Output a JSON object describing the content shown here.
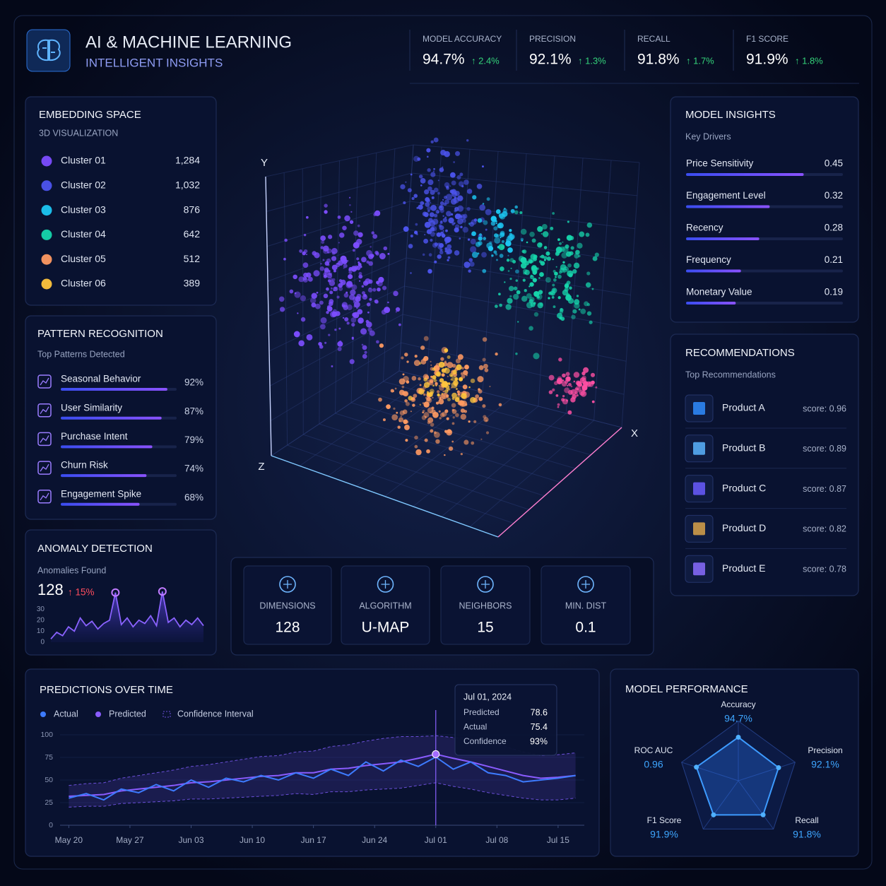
{
  "header": {
    "title": "AI & MACHINE LEARNING",
    "subtitle": "INTELLIGENT INSIGHTS"
  },
  "kpis": [
    {
      "label": "MODEL ACCURACY",
      "value": "94.7%",
      "delta": "↑ 2.4%"
    },
    {
      "label": "PRECISION",
      "value": "92.1%",
      "delta": "↑ 1.3%"
    },
    {
      "label": "RECALL",
      "value": "91.8%",
      "delta": "↑ 1.7%"
    },
    {
      "label": "F1 SCORE",
      "value": "91.9%",
      "delta": "↑ 1.8%"
    }
  ],
  "embedding": {
    "title": "EMBEDDING SPACE",
    "subtitle": "3D VISUALIZATION",
    "axes": {
      "x": "X",
      "y": "Y",
      "z": "Z"
    },
    "clusters": [
      {
        "name": "Cluster 01",
        "count": "1,284",
        "color": "#7c4dff"
      },
      {
        "name": "Cluster 02",
        "count": "1,032",
        "color": "#4d55f0"
      },
      {
        "name": "Cluster 03",
        "count": "876",
        "color": "#1cc6f2"
      },
      {
        "name": "Cluster 04",
        "count": "642",
        "color": "#16d6ac"
      },
      {
        "name": "Cluster 05",
        "count": "512",
        "color": "#ff9a62"
      },
      {
        "name": "Cluster 06",
        "count": "389",
        "color": "#ffc53d"
      }
    ]
  },
  "patterns": {
    "title": "PATTERN RECOGNITION",
    "subtitle": "Top Patterns Detected",
    "xlim": [
      0,
      100
    ],
    "items": [
      {
        "name": "Seasonal Behavior",
        "value": 92,
        "label": "92%"
      },
      {
        "name": "User Similarity",
        "value": 87,
        "label": "87%"
      },
      {
        "name": "Purchase Intent",
        "value": 79,
        "label": "79%"
      },
      {
        "name": "Churn Risk",
        "value": 74,
        "label": "74%"
      },
      {
        "name": "Engagement Spike",
        "value": 68,
        "label": "68%"
      }
    ]
  },
  "anomaly": {
    "title": "ANOMALY DETECTION",
    "subtitle": "Anomalies Found",
    "value": "128",
    "delta": "↑ 15%",
    "ylim": [
      0,
      48
    ],
    "yticks": [
      0,
      10,
      20,
      30
    ],
    "values": [
      3,
      9,
      6,
      14,
      10,
      22,
      15,
      19,
      12,
      17,
      20,
      45,
      16,
      22,
      14,
      20,
      17,
      24,
      15,
      46,
      18,
      22,
      14,
      20,
      16,
      22,
      15
    ]
  },
  "parameters": [
    {
      "label": "DIMENSIONS",
      "value": "128"
    },
    {
      "label": "ALGORITHM",
      "value": "U-MAP"
    },
    {
      "label": "NEIGHBORS",
      "value": "15"
    },
    {
      "label": "MIN. DIST",
      "value": "0.1"
    }
  ],
  "insights": {
    "title": "MODEL INSIGHTS",
    "subtitle": "Key Drivers",
    "xlim": [
      0,
      0.6
    ],
    "drivers": [
      {
        "name": "Price Sensitivity",
        "value": 0.45
      },
      {
        "name": "Engagement Level",
        "value": 0.32
      },
      {
        "name": "Recency",
        "value": 0.28
      },
      {
        "name": "Frequency",
        "value": 0.21
      },
      {
        "name": "Monetary Value",
        "value": 0.19
      }
    ]
  },
  "recommendations": {
    "title": "RECOMMENDATIONS",
    "subtitle": "Top Recommendations",
    "items": [
      {
        "name": "Product A",
        "score": "score: 0.96"
      },
      {
        "name": "Product B",
        "score": "score: 0.89"
      },
      {
        "name": "Product C",
        "score": "score: 0.87"
      },
      {
        "name": "Product D",
        "score": "score: 0.82"
      },
      {
        "name": "Product E",
        "score": "score: 0.78"
      }
    ]
  },
  "predictions": {
    "title": "PREDICTIONS OVER TIME",
    "xlim": [
      -1,
      59
    ],
    "ylim": [
      0,
      100
    ],
    "yticks": [
      0,
      25,
      50,
      75,
      100
    ],
    "xticks": [
      {
        "value": 0,
        "label": "May 20"
      },
      {
        "value": 7,
        "label": "May 27"
      },
      {
        "value": 14,
        "label": "Jun 03"
      },
      {
        "value": 21,
        "label": "Jun 10"
      },
      {
        "value": 28,
        "label": "Jun 17"
      },
      {
        "value": 35,
        "label": "Jun 24"
      },
      {
        "value": 42,
        "label": "Jul 01"
      },
      {
        "value": 49,
        "label": "Jul 08"
      },
      {
        "value": 56,
        "label": "Jul 15"
      }
    ],
    "x": [
      0,
      2,
      4,
      6,
      8,
      10,
      12,
      14,
      16,
      18,
      20,
      22,
      24,
      26,
      28,
      30,
      32,
      34,
      36,
      38,
      40,
      42,
      44,
      46,
      48,
      50,
      52,
      54,
      56,
      58
    ],
    "series": [
      {
        "name": "Actual",
        "color": "#3d7bff",
        "values": [
          30,
          35,
          28,
          40,
          36,
          45,
          38,
          50,
          42,
          52,
          48,
          55,
          50,
          58,
          52,
          62,
          55,
          70,
          60,
          72,
          65,
          75.4,
          62,
          70,
          58,
          55,
          48,
          50,
          52,
          55
        ]
      },
      {
        "name": "Predicted",
        "color": "#8a5cff",
        "values": [
          32,
          33,
          34,
          38,
          40,
          42,
          44,
          47,
          48,
          50,
          52,
          54,
          55,
          58,
          58,
          62,
          63,
          66,
          68,
          70,
          74,
          78.6,
          74,
          70,
          65,
          60,
          55,
          52,
          53,
          55
        ]
      },
      {
        "name": "Confidence Interval",
        "color": "#6a4fd8",
        "lower": [
          20,
          21,
          21,
          24,
          25,
          26,
          27,
          29,
          29,
          30,
          31,
          32,
          33,
          35,
          34,
          37,
          37,
          39,
          40,
          41,
          44,
          47,
          43,
          40,
          36,
          33,
          30,
          28,
          28,
          30
        ],
        "upper": [
          44,
          46,
          47,
          52,
          55,
          58,
          61,
          65,
          67,
          70,
          73,
          76,
          77,
          81,
          82,
          87,
          89,
          93,
          96,
          98,
          98,
          99,
          97,
          96,
          92,
          87,
          81,
          77,
          78,
          80
        ]
      }
    ],
    "tooltip": {
      "date": "Jul 01, 2024",
      "x": 42,
      "rows": [
        {
          "name": "Predicted",
          "value": "78.6"
        },
        {
          "name": "Actual",
          "value": "75.4"
        },
        {
          "name": "Confidence",
          "value": "93%"
        }
      ]
    }
  },
  "performance": {
    "title": "MODEL PERFORMANCE",
    "axes": [
      {
        "name": "Accuracy",
        "value": 94.7,
        "label": "94.7%",
        "max": 100
      },
      {
        "name": "Precision",
        "value": 92.1,
        "label": "92.1%",
        "max": 100
      },
      {
        "name": "Recall",
        "value": 91.8,
        "label": "91.8%",
        "max": 100
      },
      {
        "name": "F1 Score",
        "value": 91.9,
        "label": "91.9%",
        "max": 100
      },
      {
        "name": "ROC AUC",
        "value": 0.96,
        "max": 1
      }
    ]
  }
}
